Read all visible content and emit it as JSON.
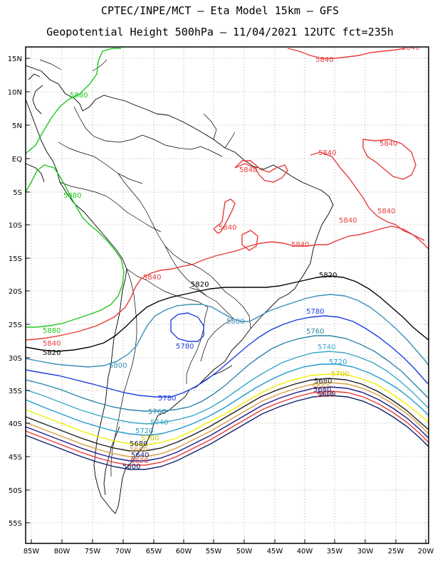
{
  "header": {
    "title_line1": "CPTEC/INPE/MCT –  Eta Model 15km – GFS",
    "title_line2": "Geopotential Height 500hPa – 11/04/2021 12UTC fct=235h"
  },
  "map": {
    "lon_labels": [
      "85W",
      "80W",
      "75W",
      "70W",
      "65W",
      "60W",
      "55W",
      "50W",
      "45W",
      "40W",
      "35W",
      "30W",
      "25W",
      "20W"
    ],
    "lat_labels": [
      "15N",
      "10N",
      "5N",
      "EQ",
      "5S",
      "10S",
      "15S",
      "20S",
      "25S",
      "30S",
      "35S",
      "40S",
      "45S",
      "50S",
      "55S"
    ],
    "colors": {
      "c5880": "#1ec81e",
      "c5840": "#e83c3c",
      "c5820": "#000000",
      "c5800": "#3a8fb8",
      "c5780": "#1c3ee0",
      "c5760": "#2a86a8",
      "c5740": "#3aa8c8",
      "c5720": "#1f9ad0",
      "c5700": "#f0f000",
      "c5680": "#202020",
      "c5660": "#d8a040",
      "c5640": "#1a1a8c",
      "c5620": "#e83c3c",
      "c5600": "#10206a"
    },
    "contour_labels": {
      "l5880_a": "5880",
      "l5880_b": "5880",
      "l5880_c": "5880",
      "l5840_a": "5840",
      "l5840_b": "5840",
      "l5840_c": "5840",
      "l5840_d": "5840",
      "l5840_e": "5840",
      "l5840_f": "5840",
      "l5840_g": "5840",
      "l5840_h": "5840",
      "l5840_i": "5840",
      "l5840_j": "5840",
      "l5840_k": "5840",
      "l5820_a": "5820",
      "l5820_b": "5820",
      "l5820_c": "5820",
      "l5800_a": "5800",
      "l5800_b": "5800",
      "l5780_a": "5780",
      "l5780_b": "5780",
      "l5780_c": "5780",
      "l5760_a": "5760",
      "l5760_b": "5760",
      "l5740_a": "5740",
      "l5740_b": "5740",
      "l5720_a": "5720",
      "l5720_b": "5720",
      "l5700_a": "5700",
      "l5700_b": "5700",
      "l5680_a": "5680",
      "l5680_b": "5680",
      "l5660_a": "5660",
      "l5660_b": "5660",
      "l5640_a": "5640",
      "l5640_b": "5640",
      "l5620_a": "5620",
      "l5620_b": "5620",
      "l5600_a": "5600",
      "l5600_b": "5600"
    }
  }
}
